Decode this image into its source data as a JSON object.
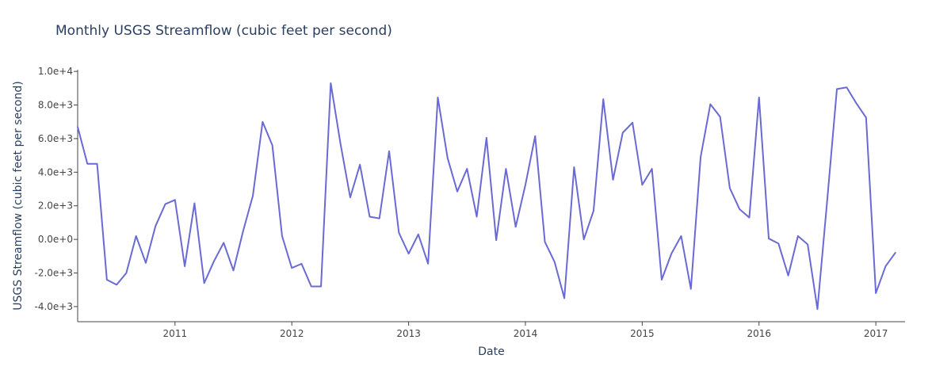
{
  "chart_data": {
    "type": "line",
    "title": "Monthly USGS Streamflow (cubic feet per second)",
    "xlabel": "Date",
    "ylabel": "USGS Streamflow (cubic feet per second)",
    "xlim": [
      "2010-03",
      "2017-04"
    ],
    "ylim": [
      -4900,
      10100
    ],
    "grid": false,
    "legend": "none",
    "x_ticks": [
      {
        "value": "2011-01",
        "label": "2011"
      },
      {
        "value": "2012-01",
        "label": "2012"
      },
      {
        "value": "2013-01",
        "label": "2013"
      },
      {
        "value": "2014-01",
        "label": "2014"
      },
      {
        "value": "2015-01",
        "label": "2015"
      },
      {
        "value": "2016-01",
        "label": "2016"
      },
      {
        "value": "2017-01",
        "label": "2017"
      }
    ],
    "y_ticks": [
      {
        "value": 10000,
        "label": "1.0e+4"
      },
      {
        "value": 8000,
        "label": "8.0e+3"
      },
      {
        "value": 6000,
        "label": "6.0e+3"
      },
      {
        "value": 4000,
        "label": "4.0e+3"
      },
      {
        "value": 2000,
        "label": "2.0e+3"
      },
      {
        "value": 0,
        "label": "0.0e+0"
      },
      {
        "value": -2000,
        "label": "-2.0e+3"
      },
      {
        "value": -4000,
        "label": "-4.0e+3"
      }
    ],
    "series": [
      {
        "color": "#6a6ad4",
        "points": [
          {
            "x": "2010-03",
            "y": 6700
          },
          {
            "x": "2010-04",
            "y": 4500
          },
          {
            "x": "2010-05",
            "y": 4500
          },
          {
            "x": "2010-06",
            "y": -2400
          },
          {
            "x": "2010-07",
            "y": -2700
          },
          {
            "x": "2010-08",
            "y": -2000
          },
          {
            "x": "2010-09",
            "y": 200
          },
          {
            "x": "2010-10",
            "y": -1400
          },
          {
            "x": "2010-11",
            "y": 800
          },
          {
            "x": "2010-12",
            "y": 2100
          },
          {
            "x": "2011-01",
            "y": 2350
          },
          {
            "x": "2011-02",
            "y": -1600
          },
          {
            "x": "2011-03",
            "y": 2150
          },
          {
            "x": "2011-04",
            "y": -2600
          },
          {
            "x": "2011-05",
            "y": -1300
          },
          {
            "x": "2011-06",
            "y": -200
          },
          {
            "x": "2011-07",
            "y": -1850
          },
          {
            "x": "2011-08",
            "y": 500
          },
          {
            "x": "2011-09",
            "y": 2600
          },
          {
            "x": "2011-10",
            "y": 7000
          },
          {
            "x": "2011-11",
            "y": 5600
          },
          {
            "x": "2011-12",
            "y": 200
          },
          {
            "x": "2012-01",
            "y": -1700
          },
          {
            "x": "2012-02",
            "y": -1450
          },
          {
            "x": "2012-03",
            "y": -2800
          },
          {
            "x": "2012-04",
            "y": -2800
          },
          {
            "x": "2012-05",
            "y": 9300
          },
          {
            "x": "2012-06",
            "y": 5700
          },
          {
            "x": "2012-07",
            "y": 2500
          },
          {
            "x": "2012-08",
            "y": 4450
          },
          {
            "x": "2012-09",
            "y": 1350
          },
          {
            "x": "2012-10",
            "y": 1250
          },
          {
            "x": "2012-11",
            "y": 5250
          },
          {
            "x": "2012-12",
            "y": 400
          },
          {
            "x": "2013-01",
            "y": -850
          },
          {
            "x": "2013-02",
            "y": 300
          },
          {
            "x": "2013-03",
            "y": -1450
          },
          {
            "x": "2013-04",
            "y": 8450
          },
          {
            "x": "2013-05",
            "y": 4850
          },
          {
            "x": "2013-06",
            "y": 2850
          },
          {
            "x": "2013-07",
            "y": 4200
          },
          {
            "x": "2013-08",
            "y": 1350
          },
          {
            "x": "2013-09",
            "y": 6050
          },
          {
            "x": "2013-10",
            "y": -50
          },
          {
            "x": "2013-11",
            "y": 4200
          },
          {
            "x": "2013-12",
            "y": 750
          },
          {
            "x": "2014-01",
            "y": 3250
          },
          {
            "x": "2014-02",
            "y": 6150
          },
          {
            "x": "2014-03",
            "y": -150
          },
          {
            "x": "2014-04",
            "y": -1350
          },
          {
            "x": "2014-05",
            "y": -3500
          },
          {
            "x": "2014-06",
            "y": 4300
          },
          {
            "x": "2014-07",
            "y": 0
          },
          {
            "x": "2014-08",
            "y": 1700
          },
          {
            "x": "2014-09",
            "y": 8350
          },
          {
            "x": "2014-10",
            "y": 3550
          },
          {
            "x": "2014-11",
            "y": 6350
          },
          {
            "x": "2014-12",
            "y": 6950
          },
          {
            "x": "2015-01",
            "y": 3250
          },
          {
            "x": "2015-02",
            "y": 4200
          },
          {
            "x": "2015-03",
            "y": -2400
          },
          {
            "x": "2015-04",
            "y": -850
          },
          {
            "x": "2015-05",
            "y": 200
          },
          {
            "x": "2015-06",
            "y": -2950
          },
          {
            "x": "2015-07",
            "y": 4900
          },
          {
            "x": "2015-08",
            "y": 8050
          },
          {
            "x": "2015-09",
            "y": 7300
          },
          {
            "x": "2015-10",
            "y": 3050
          },
          {
            "x": "2015-11",
            "y": 1800
          },
          {
            "x": "2015-12",
            "y": 1300
          },
          {
            "x": "2016-01",
            "y": 8450
          },
          {
            "x": "2016-02",
            "y": 50
          },
          {
            "x": "2016-03",
            "y": -250
          },
          {
            "x": "2016-04",
            "y": -2150
          },
          {
            "x": "2016-05",
            "y": 200
          },
          {
            "x": "2016-06",
            "y": -300
          },
          {
            "x": "2016-07",
            "y": -4150
          },
          {
            "x": "2016-08",
            "y": 2300
          },
          {
            "x": "2016-09",
            "y": 8950
          },
          {
            "x": "2016-10",
            "y": 9050
          },
          {
            "x": "2016-11",
            "y": 8100
          },
          {
            "x": "2016-12",
            "y": 7250
          },
          {
            "x": "2017-01",
            "y": -3200
          },
          {
            "x": "2017-02",
            "y": -1600
          },
          {
            "x": "2017-03",
            "y": -800
          }
        ]
      }
    ]
  }
}
